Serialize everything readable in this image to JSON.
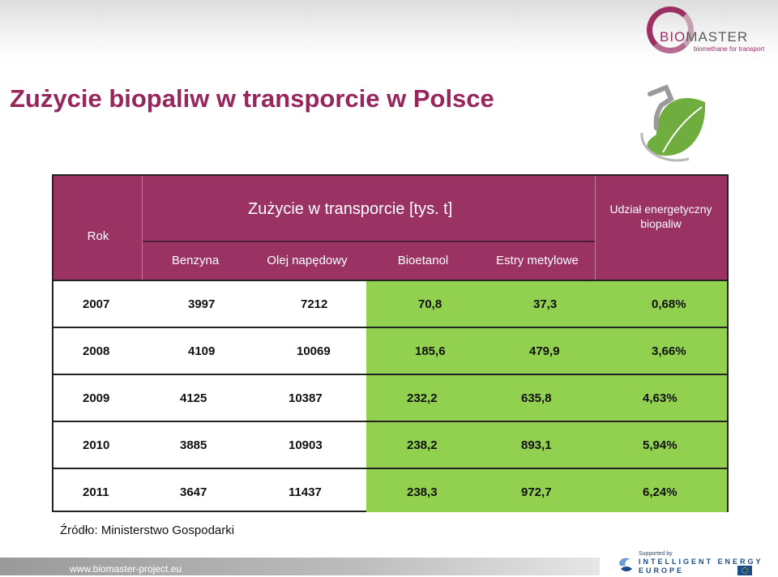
{
  "brand": {
    "logo_left": "BIO",
    "logo_right": "MASTER",
    "tagline": "biomethane for transport"
  },
  "title": "Zużycie biopaliw w transporcie w Polsce",
  "table": {
    "col_year": "Rok",
    "group_title": "Zużycie w transporcie [tys. t]",
    "col_share": "Udział energetyczny biopaliw",
    "subcols": [
      "Benzyna",
      "Olej napędowy",
      "Bioetanol",
      "Estry metylowe"
    ],
    "rows": [
      {
        "year": "2007",
        "benzyna": "3997",
        "olej": "7212",
        "bioetanol": "70,8",
        "estry": "37,3",
        "udzial": "0,68%"
      },
      {
        "year": "2008",
        "benzyna": "4109",
        "olej": "10069",
        "bioetanol": "185,6",
        "estry": "479,9",
        "udzial": "3,66%"
      },
      {
        "year": "2009",
        "benzyna": "4125",
        "olej": "10387",
        "bioetanol": "232,2",
        "estry": "635,8",
        "udzial": "4,63%"
      },
      {
        "year": "2010",
        "benzyna": "3885",
        "olej": "10903",
        "bioetanol": "238,2",
        "estry": "893,1",
        "udzial": "5,94%"
      },
      {
        "year": "2011",
        "benzyna": "3647",
        "olej": "11437",
        "bioetanol": "238,3",
        "estry": "972,7",
        "udzial": "6,24%"
      }
    ]
  },
  "source": "Źródło: Ministerstwo Gospodarki",
  "footer": {
    "url": "www.biomaster-project.eu",
    "supported_by": "Supported by",
    "ieu_line1": "INTELLIGENT ENERGY",
    "ieu_line2": "EUROPE"
  },
  "colors": {
    "brand": "#9b3264",
    "highlight": "#92d050"
  }
}
